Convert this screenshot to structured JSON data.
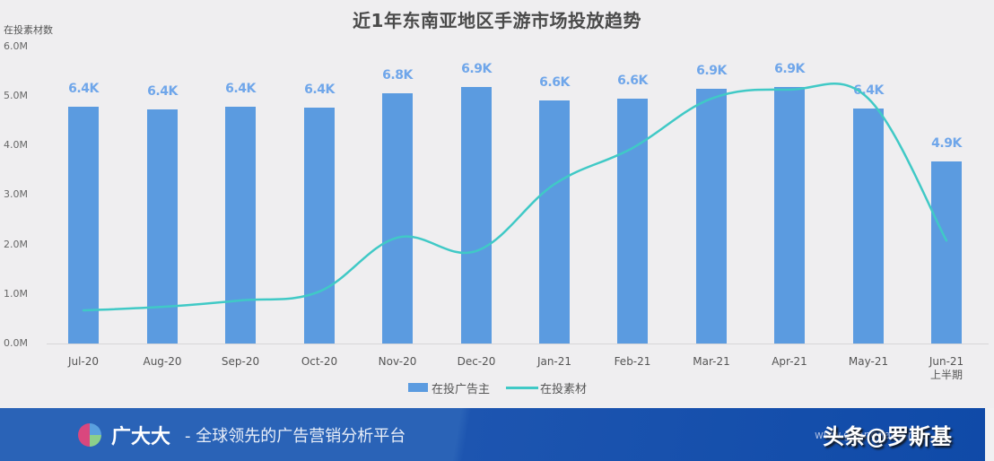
{
  "chart_data": {
    "type": "bar",
    "title": "近1年东南亚地区手游市场投放趋势",
    "xlabel": "",
    "ylabel": "在投素材数",
    "ylim": [
      0,
      6000000
    ],
    "y_ticks": [
      "0.0M",
      "1.0M",
      "2.0M",
      "3.0M",
      "4.0M",
      "5.0M",
      "6.0M"
    ],
    "grid": false,
    "legend_position": "bottom",
    "categories": [
      "Jul-20",
      "Aug-20",
      "Sep-20",
      "Oct-20",
      "Nov-20",
      "Dec-20",
      "Jan-21",
      "Feb-21",
      "Mar-21",
      "Apr-21",
      "May-21",
      "Jun-21 上半期"
    ],
    "series": [
      {
        "name": "在投广告主",
        "type": "bar",
        "color": "#5b9be0",
        "data_labels": [
          "6.4K",
          "6.4K",
          "6.4K",
          "6.4K",
          "6.8K",
          "6.9K",
          "6.6K",
          "6.6K",
          "6.9K",
          "6.9K",
          "6.4K",
          "4.9K"
        ],
        "values_advertisers": [
          6400,
          6400,
          6400,
          6400,
          6800,
          6900,
          6600,
          6600,
          6900,
          6900,
          6400,
          4900
        ],
        "bar_height_on_left_axis": [
          4780000,
          4730000,
          4780000,
          4760000,
          5060000,
          5180000,
          4910000,
          4950000,
          5150000,
          5180000,
          4750000,
          3680000
        ]
      },
      {
        "name": "在投素材",
        "type": "line",
        "color": "#40c9c6",
        "values": [
          670000,
          740000,
          870000,
          1050000,
          2140000,
          1870000,
          3220000,
          3950000,
          4950000,
          5130000,
          4950000,
          2080000
        ]
      }
    ]
  },
  "chart": {
    "title": "近1年东南亚地区手游市场投放趋势",
    "y_axis_title": "在投素材数",
    "y_ticks": [
      "6.0M",
      "5.0M",
      "4.0M",
      "3.0M",
      "2.0M",
      "1.0M",
      "0.0M"
    ],
    "x_labels": [
      "Jul-20",
      "Aug-20",
      "Sep-20",
      "Oct-20",
      "Nov-20",
      "Dec-20",
      "Jan-21",
      "Feb-21",
      "Mar-21",
      "Apr-21",
      "May-21",
      "Jun-21"
    ],
    "x_sublabel_last": "上半期",
    "bar_labels": [
      "6.4K",
      "6.4K",
      "6.4K",
      "6.4K",
      "6.8K",
      "6.9K",
      "6.6K",
      "6.6K",
      "6.9K",
      "6.9K",
      "6.4K",
      "4.9K"
    ],
    "legend": {
      "bar": "在投广告主",
      "line": "在投素材"
    }
  },
  "footer": {
    "brand": "广大大",
    "slogan": "- 全球领先的广告营销分析平台",
    "watermark_small": "www.guangdada.net",
    "watermark": "头条@罗斯基"
  }
}
